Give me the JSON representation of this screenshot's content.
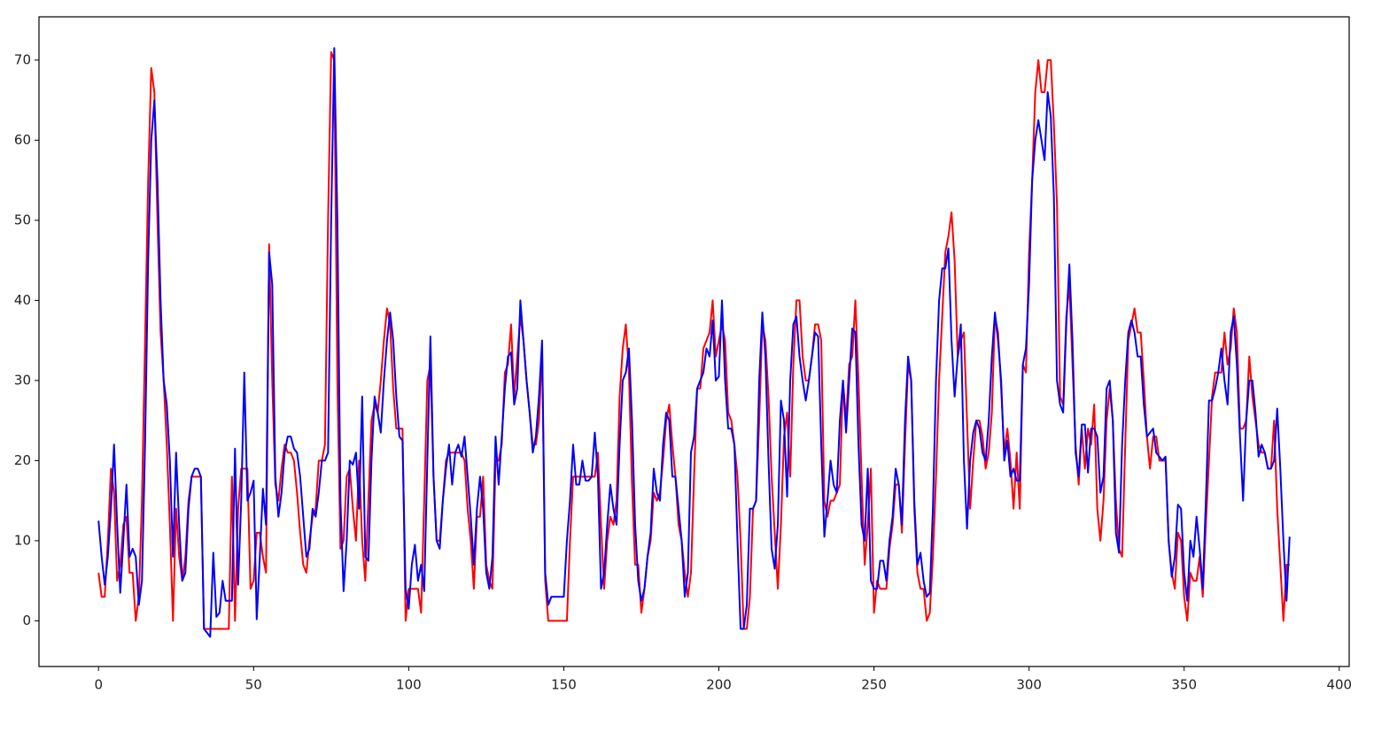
{
  "chart_data": {
    "type": "line",
    "x": [
      0,
      1,
      2,
      3,
      4,
      5,
      6,
      7,
      8,
      9,
      10,
      11,
      12,
      13,
      14,
      15,
      16,
      17,
      18,
      19,
      20,
      21,
      22,
      23,
      24,
      25,
      26,
      27,
      28,
      29,
      30,
      31,
      32,
      33,
      34,
      35,
      36,
      37,
      38,
      39,
      40,
      41,
      42,
      43,
      44,
      45,
      46,
      47,
      48,
      49,
      50,
      51,
      52,
      53,
      54,
      55,
      56,
      57,
      58,
      59,
      60,
      61,
      62,
      63,
      64,
      65,
      66,
      67,
      68,
      69,
      70,
      71,
      72,
      73,
      74,
      75,
      76,
      77,
      78,
      79,
      80,
      81,
      82,
      83,
      84,
      85,
      86,
      87,
      88,
      89,
      90,
      91,
      92,
      93,
      94,
      95,
      96,
      97,
      98,
      99,
      100,
      101,
      102,
      103,
      104,
      105,
      106,
      107,
      108,
      109,
      110,
      111,
      112,
      113,
      114,
      115,
      116,
      117,
      118,
      119,
      120,
      121,
      122,
      123,
      124,
      125,
      126,
      127,
      128,
      129,
      130,
      131,
      132,
      133,
      134,
      135,
      136,
      137,
      138,
      139,
      140,
      141,
      142,
      143,
      144,
      145,
      146,
      147,
      148,
      149,
      150,
      151,
      152,
      153,
      154,
      155,
      156,
      157,
      158,
      159,
      160,
      161,
      162,
      163,
      164,
      165,
      166,
      167,
      168,
      169,
      170,
      171,
      172,
      173,
      174,
      175,
      176,
      177,
      178,
      179,
      180,
      181,
      182,
      183,
      184,
      185,
      186,
      187,
      188,
      189,
      190,
      191,
      192,
      193,
      194,
      195,
      196,
      197,
      198,
      199,
      200,
      201,
      202,
      203,
      204,
      205,
      206,
      207,
      208,
      209,
      210,
      211,
      212,
      213,
      214,
      215,
      216,
      217,
      218,
      219,
      220,
      221,
      222,
      223,
      224,
      225,
      226,
      227,
      228,
      229,
      230,
      231,
      232,
      233,
      234,
      235,
      236,
      237,
      238,
      239,
      240,
      241,
      242,
      243,
      244,
      245,
      246,
      247,
      248,
      249,
      250,
      251,
      252,
      253,
      254,
      255,
      256,
      257,
      258,
      259,
      260,
      261,
      262,
      263,
      264,
      265,
      266,
      267,
      268,
      269,
      270,
      271,
      272,
      273,
      274,
      275,
      276,
      277,
      278,
      279,
      280,
      281,
      282,
      283,
      284,
      285,
      286,
      287,
      288,
      289,
      290,
      291,
      292,
      293,
      294,
      295,
      296,
      297,
      298,
      299,
      300,
      301,
      302,
      303,
      304,
      305,
      306,
      307,
      308,
      309,
      310,
      311,
      312,
      313,
      314,
      315,
      316,
      317,
      318,
      319,
      320,
      321,
      322,
      323,
      324,
      325,
      326,
      327,
      328,
      329,
      330,
      331,
      332,
      333,
      334,
      335,
      336,
      337,
      338,
      339,
      340,
      341,
      342,
      343,
      344,
      345,
      346,
      347,
      348,
      349,
      350,
      351,
      352,
      353,
      354,
      355,
      356,
      357,
      358,
      359,
      360,
      361,
      362,
      363,
      364,
      365,
      366,
      367,
      368,
      369,
      370,
      371,
      372,
      373,
      374,
      375,
      376,
      377,
      378,
      379,
      380,
      381,
      382,
      383,
      384
    ],
    "series": [
      {
        "color": "#ff0000",
        "values": [
          6,
          3,
          3,
          10,
          19,
          16,
          5,
          7,
          12,
          13,
          6,
          6,
          0,
          3,
          15,
          35,
          55,
          69,
          66,
          50,
          36,
          30,
          22,
          12,
          0,
          14,
          8,
          5,
          8,
          15,
          18,
          18,
          18,
          18,
          -1,
          -1,
          -1,
          -1,
          -1,
          -1,
          -1,
          -1,
          -1,
          18,
          0,
          14,
          19,
          19,
          19,
          4,
          5,
          11,
          11,
          8,
          6,
          47,
          30,
          17,
          15,
          19,
          22,
          21,
          21,
          20,
          16,
          11,
          7,
          6,
          10,
          13,
          14,
          20,
          20,
          22,
          50,
          71,
          70,
          30,
          9,
          10,
          18,
          19,
          14,
          10,
          20,
          10,
          5,
          15,
          25,
          27,
          26,
          30,
          35,
          39,
          37,
          29,
          24,
          24,
          24,
          0,
          4,
          4,
          4,
          4,
          1,
          15,
          30,
          32,
          18,
          10,
          10,
          15,
          20,
          21,
          21,
          21,
          21,
          21,
          20,
          14,
          10,
          4,
          13,
          13,
          18,
          7,
          5,
          4,
          20,
          20,
          22,
          31,
          32,
          37,
          28,
          33,
          38,
          35,
          30,
          26,
          22,
          22,
          25,
          34,
          5,
          0,
          0,
          0,
          0,
          0,
          0,
          0,
          10,
          18,
          18,
          18,
          18,
          18,
          18,
          18,
          18,
          21,
          12,
          4,
          10,
          13,
          12,
          15,
          28,
          34,
          37,
          31,
          17,
          7,
          7,
          1,
          4,
          8,
          10,
          16,
          15,
          16,
          20,
          25,
          27,
          22,
          18,
          12,
          10,
          6,
          3,
          6,
          18,
          29,
          29,
          34,
          35,
          36,
          40,
          33,
          35,
          37,
          35,
          26,
          25,
          22,
          18,
          10,
          -1,
          -1,
          3,
          14,
          15,
          25,
          37,
          35,
          28,
          18,
          11,
          4,
          12,
          23,
          26,
          18,
          32,
          40,
          40,
          33,
          30,
          30,
          33,
          37,
          37,
          35,
          15,
          13,
          15,
          15,
          16,
          17,
          30,
          25,
          32,
          33,
          40,
          30,
          18,
          7,
          12,
          19,
          1,
          5,
          4,
          4,
          4,
          9,
          12,
          17,
          17,
          11,
          22,
          32,
          30,
          14,
          6,
          4,
          4,
          0,
          1,
          8,
          18,
          30,
          38,
          46,
          48,
          51,
          45,
          33,
          35,
          36,
          25,
          14,
          20,
          25,
          25,
          23,
          19,
          21,
          26,
          38,
          36,
          29,
          21,
          24,
          20,
          14,
          21,
          14,
          32,
          31,
          46,
          55,
          66,
          70,
          66,
          66,
          70,
          70,
          62,
          52,
          28,
          27,
          38,
          42,
          32,
          22,
          17,
          24,
          19,
          24,
          22,
          27,
          14,
          10,
          15,
          25,
          29,
          25,
          15,
          9,
          8,
          22,
          35,
          37,
          39,
          36,
          36,
          30,
          23,
          19,
          23,
          23,
          20,
          20,
          20,
          10,
          6,
          4,
          11,
          10,
          3,
          0,
          6,
          5,
          5,
          8,
          3,
          12,
          20,
          28,
          31,
          31,
          31,
          36,
          32,
          34,
          39,
          36,
          24,
          24,
          25,
          33,
          28,
          25,
          22,
          21,
          21,
          19,
          19,
          25,
          14,
          7,
          0,
          7,
          7
        ]
      },
      {
        "color": "#0000ff",
        "values": [
          12.5,
          8,
          4.5,
          8,
          14,
          22,
          12,
          3.5,
          10,
          17,
          8,
          9,
          8,
          2,
          5,
          22,
          45,
          60,
          65,
          55,
          40,
          30,
          27,
          20,
          8,
          21,
          12,
          5,
          6,
          14,
          18,
          19,
          19,
          18,
          -1,
          -1.5,
          -2,
          8.5,
          0.5,
          1,
          5,
          2.5,
          2.5,
          2.5,
          21.5,
          4.5,
          15,
          31,
          15,
          16,
          17.5,
          0.2,
          8,
          16.5,
          12,
          46,
          42,
          18,
          13,
          16,
          21,
          23,
          23,
          21.5,
          21,
          18,
          13,
          8,
          9,
          14,
          13,
          16,
          20,
          20,
          21,
          50,
          71.5,
          50,
          15,
          3.7,
          10,
          20,
          19.5,
          21,
          14,
          28,
          8,
          7.5,
          20,
          28,
          26,
          23.5,
          30,
          35,
          38.5,
          35,
          28,
          23,
          22.5,
          4,
          1.5,
          7,
          9.5,
          5,
          7,
          3.7,
          20,
          35.5,
          18,
          10,
          9,
          15,
          19,
          22,
          17,
          21,
          22,
          20.5,
          23,
          18,
          13,
          7,
          14,
          18,
          14,
          6,
          4,
          8,
          23,
          17,
          23,
          29,
          33,
          33.5,
          27,
          29,
          40,
          35,
          30,
          26,
          21,
          23,
          28,
          35,
          6,
          2,
          3,
          3,
          3,
          3,
          3,
          10,
          15,
          22,
          17,
          17,
          20,
          17.5,
          17.5,
          18,
          23.5,
          18,
          4,
          6,
          12,
          17,
          14,
          12,
          22,
          30,
          31,
          34,
          25,
          12,
          5,
          2.5,
          4,
          8,
          11,
          19,
          16,
          15,
          22,
          26,
          25,
          18,
          18,
          14,
          10,
          3,
          6,
          21,
          23,
          29,
          30,
          31,
          34,
          33,
          37.5,
          30,
          30.5,
          40,
          30,
          24,
          24,
          22,
          10,
          -1,
          -1,
          2,
          14,
          14,
          15,
          30,
          38.5,
          33,
          20,
          9,
          6.5,
          12,
          27.5,
          25,
          15.5,
          30,
          37,
          38,
          33,
          30,
          27.5,
          30,
          33,
          36,
          35.5,
          22,
          10.5,
          15,
          20,
          17,
          16,
          25,
          30,
          23.5,
          30,
          36.5,
          36,
          22,
          12,
          10,
          19,
          5,
          4,
          4,
          7.5,
          7.5,
          5,
          10,
          13,
          19,
          17,
          12,
          25,
          33,
          30,
          15,
          7,
          8.5,
          5,
          3,
          3.5,
          14,
          30,
          40,
          44,
          44,
          46.5,
          35,
          28,
          33,
          37,
          20,
          11.5,
          20,
          23.5,
          25,
          24,
          21,
          20,
          25,
          33,
          38.5,
          35,
          30,
          20,
          22.5,
          18,
          19,
          17.5,
          17.5,
          32,
          34,
          42,
          55,
          60,
          62.5,
          60,
          57.5,
          66,
          63,
          53,
          30,
          27,
          26,
          37,
          44.5,
          35,
          21,
          18,
          24.5,
          24.5,
          18.5,
          24,
          24,
          23,
          16,
          18,
          29,
          30,
          25,
          11,
          8.5,
          22,
          30,
          36,
          37.5,
          36,
          33,
          33,
          27,
          23,
          23.5,
          24,
          21,
          20.5,
          20,
          20.5,
          10,
          5.5,
          8,
          14.5,
          14,
          6,
          2.5,
          10,
          8,
          13,
          9,
          4,
          15,
          27.5,
          27.5,
          29,
          31,
          34,
          30,
          27,
          36,
          38,
          32,
          23,
          15,
          25,
          30,
          30,
          26,
          20.5,
          22,
          21,
          19,
          19,
          20,
          26.5,
          19,
          10,
          2.5,
          10.5
        ]
      }
    ],
    "xlim": [
      -19.2,
      403.2
    ],
    "xticks": [
      0,
      50,
      100,
      150,
      200,
      250,
      300,
      350,
      400
    ],
    "ylim": [
      -5.7,
      75.4
    ],
    "yticks": [
      0,
      10,
      20,
      30,
      40,
      50,
      60,
      70
    ],
    "grid": false
  }
}
